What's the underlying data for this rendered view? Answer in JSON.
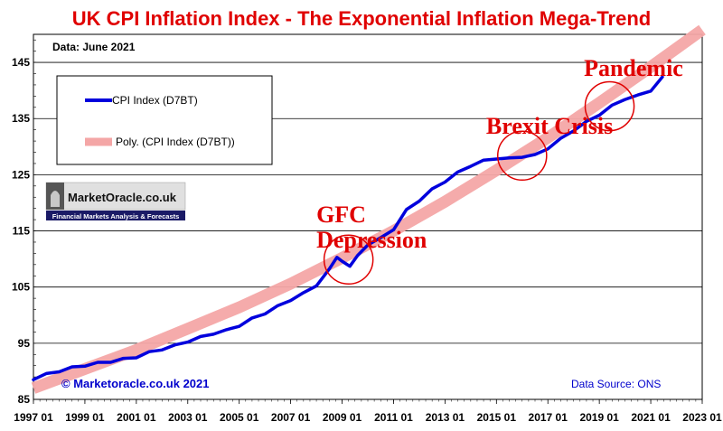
{
  "chart_data": {
    "type": "line",
    "title": "UK CPI Inflation Index - The Exponential Inflation Mega-Trend",
    "subtitle": "Data: June 2021",
    "xlabel": "",
    "ylabel": "",
    "xlim": [
      1997.0,
      2023.0
    ],
    "ylim": [
      85,
      150
    ],
    "yticks": [
      85,
      95,
      105,
      115,
      125,
      135,
      145
    ],
    "xticks": [
      1997,
      1999,
      2001,
      2003,
      2005,
      2007,
      2009,
      2011,
      2013,
      2015,
      2017,
      2019,
      2021,
      2023
    ],
    "xtick_labels": [
      "1997 01",
      "1999 01",
      "2001 01",
      "2003 01",
      "2005 01",
      "2007 01",
      "2009 01",
      "2011 01",
      "2013 01",
      "2015 01",
      "2017 01",
      "2019 01",
      "2021 01",
      "2023 01"
    ],
    "grid": "horizontal",
    "legend_position": "top-left",
    "series": [
      {
        "name": "CPI Index (D7BT)",
        "color": "#0000dd",
        "points": [
          [
            1997.0,
            88.5
          ],
          [
            1997.5,
            89.6
          ],
          [
            1998.0,
            89.9
          ],
          [
            1998.5,
            90.8
          ],
          [
            1999.0,
            90.9
          ],
          [
            1999.5,
            91.6
          ],
          [
            2000.0,
            91.6
          ],
          [
            2000.5,
            92.3
          ],
          [
            2001.0,
            92.4
          ],
          [
            2001.5,
            93.5
          ],
          [
            2002.0,
            93.8
          ],
          [
            2002.5,
            94.7
          ],
          [
            2003.0,
            95.2
          ],
          [
            2003.5,
            96.2
          ],
          [
            2004.0,
            96.6
          ],
          [
            2004.5,
            97.4
          ],
          [
            2005.0,
            98.0
          ],
          [
            2005.5,
            99.5
          ],
          [
            2006.0,
            100.2
          ],
          [
            2006.5,
            101.7
          ],
          [
            2007.0,
            102.6
          ],
          [
            2007.5,
            104.0
          ],
          [
            2008.0,
            105.2
          ],
          [
            2008.5,
            108.2
          ],
          [
            2008.8,
            110.3
          ],
          [
            2009.0,
            109.6
          ],
          [
            2009.3,
            108.7
          ],
          [
            2009.6,
            110.6
          ],
          [
            2010.0,
            112.5
          ],
          [
            2010.5,
            113.8
          ],
          [
            2011.0,
            115.2
          ],
          [
            2011.5,
            118.8
          ],
          [
            2012.0,
            120.3
          ],
          [
            2012.5,
            122.5
          ],
          [
            2013.0,
            123.7
          ],
          [
            2013.5,
            125.5
          ],
          [
            2014.0,
            126.5
          ],
          [
            2014.5,
            127.6
          ],
          [
            2015.0,
            127.8
          ],
          [
            2015.5,
            128.0
          ],
          [
            2016.0,
            128.1
          ],
          [
            2016.5,
            128.6
          ],
          [
            2017.0,
            129.6
          ],
          [
            2017.5,
            131.5
          ],
          [
            2018.0,
            132.8
          ],
          [
            2018.5,
            134.5
          ],
          [
            2019.0,
            135.6
          ],
          [
            2019.5,
            137.4
          ],
          [
            2020.0,
            138.4
          ],
          [
            2020.5,
            139.2
          ],
          [
            2021.0,
            139.9
          ],
          [
            2021.45,
            142.4
          ]
        ]
      },
      {
        "name": "Poly. (CPI Index (D7BT))",
        "color": "#f4a6a6",
        "points": [
          [
            1997.0,
            87.0
          ],
          [
            1999.0,
            90.4
          ],
          [
            2001.0,
            93.8
          ],
          [
            2003.0,
            97.6
          ],
          [
            2005.0,
            101.4
          ],
          [
            2007.0,
            105.6
          ],
          [
            2009.0,
            110.2
          ],
          [
            2011.0,
            115.0
          ],
          [
            2013.0,
            120.2
          ],
          [
            2015.0,
            125.8
          ],
          [
            2017.0,
            131.6
          ],
          [
            2019.0,
            137.8
          ],
          [
            2021.0,
            144.2
          ],
          [
            2023.0,
            150.8
          ]
        ]
      }
    ],
    "annotations": [
      {
        "text": "GFC",
        "x": 2008.0,
        "y": 116.5,
        "size": "large"
      },
      {
        "text": "Depression",
        "x": 2008.0,
        "y": 112.0,
        "size": "large"
      },
      {
        "text": "Brexit Crisis",
        "x": 2014.6,
        "y": 132.3,
        "size": "large"
      },
      {
        "text": "Pandemic",
        "x": 2018.4,
        "y": 142.6,
        "size": "large"
      }
    ],
    "circles": [
      {
        "label": "gfc",
        "x": 2009.25,
        "y": 109.9,
        "r": 1.9
      },
      {
        "label": "brexit",
        "x": 2016.0,
        "y": 128.4,
        "r": 1.9
      },
      {
        "label": "pandemic",
        "x": 2019.4,
        "y": 137.2,
        "r": 1.9
      }
    ]
  },
  "legend": {
    "cpi_label": "CPI Index (D7BT)",
    "poly_label": "Poly. (CPI Index (D7BT))"
  },
  "logo": {
    "name": "MarketOracle.co.uk",
    "tagline": "Financial Markets Analysis & Forecasts"
  },
  "footer": {
    "credit": "© Marketoracle.co.uk 2021",
    "source": "Data Source: ONS"
  }
}
